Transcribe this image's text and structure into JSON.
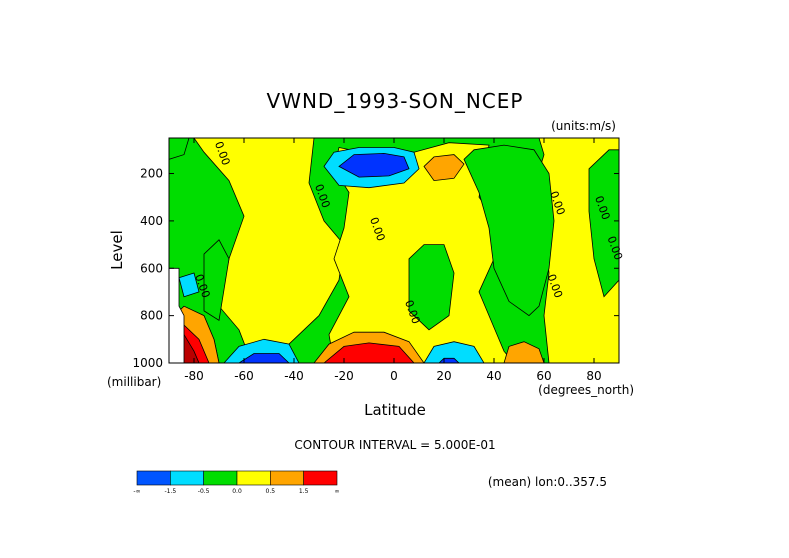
{
  "chart_data": {
    "type": "contour",
    "title": "VWND_1993-SON_NCEP",
    "units_note": "(units:m/s)",
    "xlabel": "Latitude",
    "xunit": "(degrees_north)",
    "ylabel": "Level",
    "yunit": "(millibar)",
    "xlim": [
      -90,
      90
    ],
    "ylim": [
      1000,
      50
    ],
    "x_ticks": [
      -80,
      -60,
      -40,
      -20,
      0,
      20,
      40,
      60,
      80
    ],
    "x_tick_labels": [
      "-80",
      "-60",
      "-40",
      "-20",
      "0",
      "20",
      "40",
      "60",
      "80"
    ],
    "y_ticks": [
      200,
      400,
      600,
      800,
      1000
    ],
    "y_tick_labels": [
      "200",
      "400",
      "600",
      "800",
      "1000"
    ],
    "contour_interval_label": "CONTOUR INTERVAL = 5.000E-01",
    "mean_note": "(mean) lon:0..357.5",
    "contour_labels": [
      {
        "text": "0.00",
        "lat": -70,
        "lev": 120
      },
      {
        "text": "0.00",
        "lat": -30,
        "lev": 300
      },
      {
        "text": "0.00",
        "lat": -8,
        "lev": 440
      },
      {
        "text": "0.00",
        "lat": 6,
        "lev": 790
      },
      {
        "text": "0.00",
        "lat": 64,
        "lev": 330
      },
      {
        "text": "0.00",
        "lat": 82,
        "lev": 350
      },
      {
        "text": "0.00",
        "lat": 63,
        "lev": 680
      },
      {
        "text": "0.00",
        "lat": 87,
        "lev": 520
      },
      {
        "text": "0.00",
        "lat": -78,
        "lev": 680
      }
    ],
    "colorbar": {
      "colors": [
        "#0055ff",
        "#00ddff",
        "#00dd00",
        "#ffff00",
        "#ffa500",
        "#ff0000"
      ],
      "labels": [
        "-∞",
        "-1.5",
        "-0.5",
        "0.0",
        "0.5",
        "1.5",
        "∞"
      ]
    },
    "colors": {
      "strong_negative": "#0033ff",
      "negative": "#00ddff",
      "near_zero_negative": "#00dd00",
      "near_zero_positive": "#ffff00",
      "positive": "#ffa500",
      "strong_positive": "#ff0000",
      "extreme_positive": "#bb0000",
      "missing": "#ffffff"
    },
    "regions": [
      {
        "fill": "#00dd00",
        "poly": [
          [
            -90,
            50
          ],
          [
            90,
            50
          ],
          [
            90,
            1000
          ],
          [
            -90,
            1000
          ]
        ]
      },
      {
        "fill": "#ffff00",
        "poly": [
          [
            -80,
            50
          ],
          [
            -32,
            50
          ],
          [
            -34,
            240
          ],
          [
            -28,
            400
          ],
          [
            -20,
            500
          ],
          [
            -22,
            650
          ],
          [
            -30,
            800
          ],
          [
            -42,
            920
          ],
          [
            -58,
            970
          ],
          [
            -62,
            860
          ],
          [
            -70,
            760
          ],
          [
            -66,
            560
          ],
          [
            -60,
            380
          ],
          [
            -66,
            230
          ],
          [
            -76,
            110
          ]
        ]
      },
      {
        "fill": "#ffff00",
        "poly": [
          [
            -22,
            90
          ],
          [
            -8,
            120
          ],
          [
            8,
            110
          ],
          [
            22,
            70
          ],
          [
            38,
            80
          ],
          [
            34,
            300
          ],
          [
            44,
            450
          ],
          [
            40,
            560
          ],
          [
            34,
            700
          ],
          [
            40,
            850
          ],
          [
            44,
            950
          ],
          [
            48,
            1000
          ],
          [
            -24,
            1000
          ],
          [
            -26,
            880
          ],
          [
            -18,
            720
          ],
          [
            -24,
            560
          ],
          [
            -20,
            430
          ],
          [
            -18,
            280
          ],
          [
            -24,
            180
          ]
        ]
      },
      {
        "fill": "#ffff00",
        "poly": [
          [
            58,
            50
          ],
          [
            90,
            50
          ],
          [
            90,
            1000
          ],
          [
            62,
            1000
          ],
          [
            60,
            800
          ],
          [
            62,
            620
          ],
          [
            60,
            440
          ],
          [
            56,
            260
          ],
          [
            60,
            120
          ]
        ]
      },
      {
        "fill": "#ffff00",
        "poly": [
          [
            -80,
            880
          ],
          [
            -72,
            900
          ],
          [
            -70,
            1000
          ],
          [
            -80,
            1000
          ]
        ]
      },
      {
        "fill": "#00dd00",
        "poly": [
          [
            28,
            140
          ],
          [
            32,
            100
          ],
          [
            44,
            80
          ],
          [
            56,
            100
          ],
          [
            62,
            200
          ],
          [
            64,
            400
          ],
          [
            62,
            600
          ],
          [
            58,
            760
          ],
          [
            54,
            800
          ],
          [
            46,
            740
          ],
          [
            40,
            600
          ],
          [
            38,
            430
          ],
          [
            34,
            280
          ]
        ]
      },
      {
        "fill": "#00dd00",
        "poly": [
          [
            6,
            560
          ],
          [
            12,
            500
          ],
          [
            20,
            500
          ],
          [
            24,
            620
          ],
          [
            22,
            800
          ],
          [
            14,
            860
          ],
          [
            6,
            780
          ]
        ]
      },
      {
        "fill": "#00dd00",
        "poly": [
          [
            78,
            180
          ],
          [
            86,
            100
          ],
          [
            90,
            100
          ],
          [
            90,
            650
          ],
          [
            84,
            720
          ],
          [
            80,
            560
          ],
          [
            78,
            360
          ]
        ]
      },
      {
        "fill": "#00dd00",
        "poly": [
          [
            -76,
            540
          ],
          [
            -70,
            480
          ],
          [
            -66,
            560
          ],
          [
            -70,
            820
          ],
          [
            -76,
            780
          ]
        ]
      },
      {
        "fill": "#00dd00",
        "poly": [
          [
            -90,
            50
          ],
          [
            -82,
            50
          ],
          [
            -84,
            120
          ],
          [
            -90,
            140
          ]
        ]
      },
      {
        "fill": "#00ddff",
        "poly": [
          [
            -28,
            170
          ],
          [
            -24,
            110
          ],
          [
            -14,
            90
          ],
          [
            0,
            90
          ],
          [
            8,
            110
          ],
          [
            10,
            180
          ],
          [
            4,
            240
          ],
          [
            -10,
            260
          ],
          [
            -22,
            250
          ]
        ]
      },
      {
        "fill": "#0033ff",
        "poly": [
          [
            -22,
            170
          ],
          [
            -16,
            120
          ],
          [
            -4,
            115
          ],
          [
            4,
            130
          ],
          [
            6,
            180
          ],
          [
            -2,
            210
          ],
          [
            -14,
            215
          ]
        ]
      },
      {
        "fill": "#ffa500",
        "poly": [
          [
            12,
            170
          ],
          [
            16,
            130
          ],
          [
            24,
            120
          ],
          [
            28,
            160
          ],
          [
            24,
            220
          ],
          [
            16,
            230
          ]
        ]
      },
      {
        "fill": "#00ddff",
        "poly": [
          [
            -68,
            1000
          ],
          [
            -62,
            930
          ],
          [
            -52,
            900
          ],
          [
            -42,
            920
          ],
          [
            -38,
            1000
          ]
        ]
      },
      {
        "fill": "#0033ff",
        "poly": [
          [
            -62,
            1000
          ],
          [
            -56,
            960
          ],
          [
            -46,
            960
          ],
          [
            -42,
            1000
          ]
        ]
      },
      {
        "fill": "#ffa500",
        "poly": [
          [
            -32,
            1000
          ],
          [
            -26,
            920
          ],
          [
            -16,
            870
          ],
          [
            -4,
            870
          ],
          [
            6,
            910
          ],
          [
            12,
            1000
          ]
        ]
      },
      {
        "fill": "#ff0000",
        "poly": [
          [
            -28,
            1000
          ],
          [
            -20,
            930
          ],
          [
            -10,
            915
          ],
          [
            2,
            930
          ],
          [
            8,
            1000
          ]
        ]
      },
      {
        "fill": "#00ddff",
        "poly": [
          [
            12,
            1000
          ],
          [
            16,
            930
          ],
          [
            24,
            910
          ],
          [
            32,
            930
          ],
          [
            36,
            1000
          ]
        ]
      },
      {
        "fill": "#0033ff",
        "poly": [
          [
            18,
            1000
          ],
          [
            20,
            980
          ],
          [
            24,
            980
          ],
          [
            26,
            1000
          ]
        ]
      },
      {
        "fill": "#ffa500",
        "poly": [
          [
            44,
            1000
          ],
          [
            46,
            930
          ],
          [
            52,
            910
          ],
          [
            58,
            940
          ],
          [
            60,
            1000
          ]
        ]
      },
      {
        "fill": "#00ddff",
        "poly": [
          [
            -86,
            640
          ],
          [
            -80,
            620
          ],
          [
            -78,
            700
          ],
          [
            -84,
            720
          ]
        ]
      },
      {
        "fill": "#ffa500",
        "poly": [
          [
            -90,
            820
          ],
          [
            -84,
            760
          ],
          [
            -76,
            800
          ],
          [
            -72,
            900
          ],
          [
            -70,
            1000
          ],
          [
            -90,
            1000
          ]
        ]
      },
      {
        "fill": "#ff0000",
        "poly": [
          [
            -90,
            860
          ],
          [
            -84,
            840
          ],
          [
            -78,
            900
          ],
          [
            -74,
            1000
          ],
          [
            -90,
            1000
          ]
        ]
      },
      {
        "fill": "#bb0000",
        "poly": [
          [
            -90,
            900
          ],
          [
            -84,
            880
          ],
          [
            -80,
            950
          ],
          [
            -78,
            1000
          ],
          [
            -90,
            1000
          ]
        ]
      },
      {
        "fill": "#ffffff",
        "poly": [
          [
            -90,
            600
          ],
          [
            -86,
            600
          ],
          [
            -86,
            760
          ],
          [
            -84,
            800
          ],
          [
            -84,
            1000
          ],
          [
            -90,
            1000
          ]
        ]
      }
    ]
  }
}
